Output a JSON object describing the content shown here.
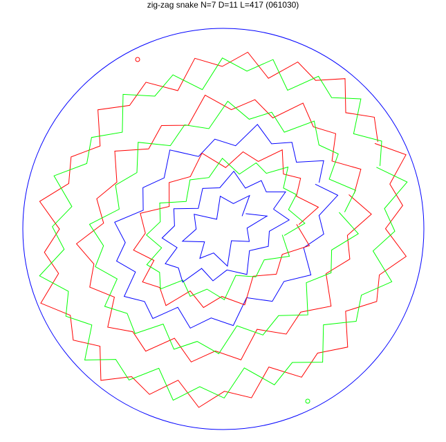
{
  "title": "zig-zag snake N=7 D=11 L=417 (061030)",
  "colors": {
    "boundary": "#0000ff",
    "red": "#ff0000",
    "green": "#00ff00",
    "blue": "#0000ff"
  }
}
